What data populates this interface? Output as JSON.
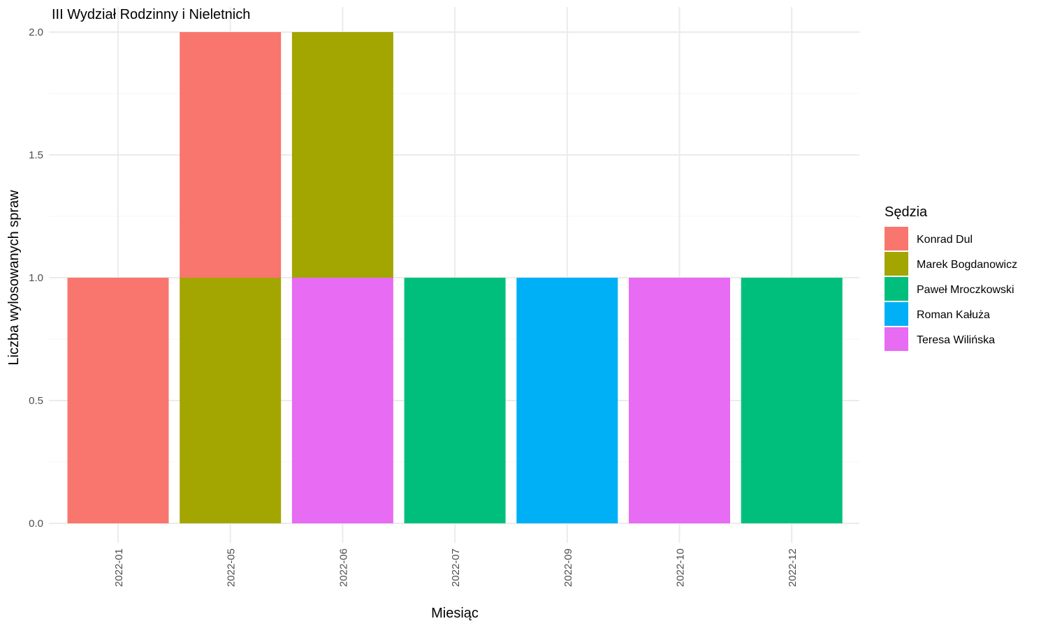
{
  "chart_data": {
    "type": "bar",
    "stacked": true,
    "title": "III Wydział Rodzinny i Nieletnich",
    "xlabel": "Miesiąc",
    "ylabel": "Liczba wylosowanych spraw",
    "ylim": [
      0,
      2
    ],
    "yticks": [
      "0.0",
      "0.5",
      "1.0",
      "1.5",
      "2.0"
    ],
    "grid": true,
    "legend_position": "right",
    "legend_title": "Sędzia",
    "categories": [
      "2022-01",
      "2022-05",
      "2022-06",
      "2022-07",
      "2022-09",
      "2022-10",
      "2022-12"
    ],
    "series": [
      {
        "name": "Konrad Dul",
        "color": "#F8766D",
        "values": [
          1,
          1,
          0,
          0,
          0,
          0,
          0
        ]
      },
      {
        "name": "Marek Bogdanowicz",
        "color": "#A3A500",
        "values": [
          0,
          1,
          1,
          0,
          0,
          0,
          0
        ]
      },
      {
        "name": "Paweł Mroczkowski",
        "color": "#00BF7D",
        "values": [
          0,
          0,
          0,
          1,
          0,
          0,
          1
        ]
      },
      {
        "name": "Roman Kałuża",
        "color": "#00B0F6",
        "values": [
          0,
          0,
          0,
          0,
          1,
          0,
          0
        ]
      },
      {
        "name": "Teresa Wilińska",
        "color": "#E76BF3",
        "values": [
          0,
          0,
          1,
          0,
          0,
          1,
          0
        ]
      }
    ]
  }
}
